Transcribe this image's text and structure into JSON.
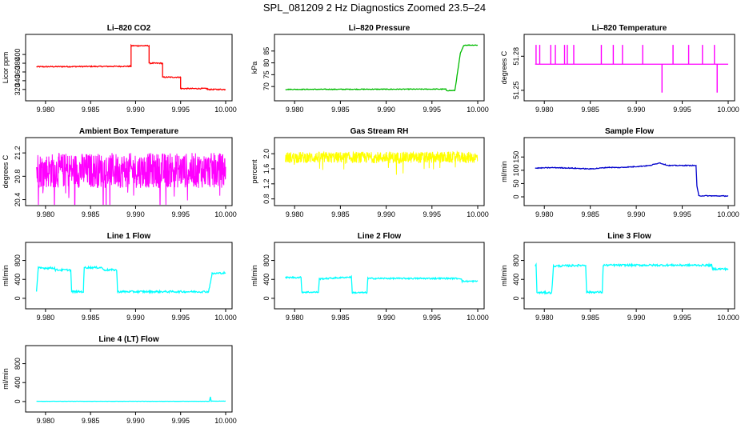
{
  "title": "SPL_081209  2 Hz Diagnostics Zoomed 23.5–24",
  "chart_data": [
    {
      "type": "line",
      "title": "Li–820 CO2",
      "ylabel": "Licor ppm",
      "color": "#ff0000",
      "xlim": [
        9.9785,
        10.0
      ],
      "ylim": [
        305,
        435
      ],
      "xticks": [
        9.98,
        9.985,
        9.99,
        9.995,
        10.0
      ],
      "xtick_labels": [
        "9.980",
        "9.985",
        "9.990",
        "9.995",
        "10.000"
      ],
      "yticks": [
        320,
        340,
        360,
        380,
        400
      ],
      "ytick_labels": [
        "320",
        "340",
        "360",
        "380",
        "400"
      ],
      "x": [
        9.979,
        9.9895,
        9.9895,
        9.9915,
        9.9915,
        9.993,
        9.993,
        9.995,
        9.995,
        9.998,
        9.998,
        10.0
      ],
      "y": [
        372,
        373,
        420,
        420,
        380,
        380,
        348,
        348,
        322,
        322,
        320,
        320
      ],
      "noise": 1.2
    },
    {
      "type": "line",
      "title": "Li–820 Pressure",
      "ylabel": "kPa",
      "color": "#00bb00",
      "xlim": [
        9.9785,
        10.0
      ],
      "ylim": [
        66,
        90
      ],
      "xticks": [
        9.98,
        9.985,
        9.99,
        9.995,
        10.0
      ],
      "xtick_labels": [
        "9.980",
        "9.985",
        "9.990",
        "9.995",
        "10.000"
      ],
      "yticks": [
        70,
        75,
        80,
        85
      ],
      "ytick_labels": [
        "70",
        "75",
        "80",
        "85"
      ],
      "x": [
        9.979,
        9.9965,
        9.9966,
        9.9975,
        9.9978,
        9.9981,
        9.9985,
        10.0
      ],
      "y": [
        68.8,
        68.9,
        68.3,
        68.3,
        76,
        84,
        87.5,
        87.5
      ],
      "noise": 0.15
    },
    {
      "type": "spikes",
      "title": "Li–820 Temperature",
      "ylabel": "degrees C",
      "color": "#ff00ff",
      "xlim": [
        9.9785,
        10.0
      ],
      "ylim": [
        51.245,
        51.295
      ],
      "xticks": [
        9.98,
        9.985,
        9.99,
        9.995,
        10.0
      ],
      "xtick_labels": [
        "9.980",
        "9.985",
        "9.990",
        "9.995",
        "10.000"
      ],
      "yticks": [
        51.25,
        51.28
      ],
      "ytick_labels": [
        "51.25",
        "51.28"
      ],
      "baseline": 51.273,
      "x": [
        9.9791,
        9.9795,
        9.9807,
        9.9812,
        9.9822,
        9.9825,
        9.9832,
        9.9862,
        9.9875,
        9.9885,
        9.9907,
        9.9928,
        9.994,
        9.9957,
        9.9972,
        9.9985,
        9.9988
      ],
      "y": [
        51.29,
        51.29,
        51.29,
        51.29,
        51.29,
        51.29,
        51.29,
        51.29,
        51.29,
        51.29,
        51.29,
        51.248,
        51.29,
        51.29,
        51.29,
        51.29,
        51.248
      ]
    },
    {
      "type": "noisy",
      "title": "Ambient Box Temperature",
      "ylabel": "degrees C",
      "color": "#ff00ff",
      "xlim": [
        9.9785,
        10.0
      ],
      "ylim": [
        20.38,
        21.38
      ],
      "xticks": [
        9.98,
        9.985,
        9.99,
        9.995,
        10.0
      ],
      "xtick_labels": [
        "9.980",
        "9.985",
        "9.990",
        "9.995",
        "10.000"
      ],
      "yticks": [
        20.4,
        20.8,
        21.2
      ],
      "ytick_labels": [
        "20.4",
        "20.8",
        "21.2"
      ],
      "x": [
        9.979,
        10.0
      ],
      "y": [
        20.9,
        20.9
      ],
      "amplitude": 0.3
    },
    {
      "type": "noisy",
      "title": "Gas Stream RH",
      "ylabel": "percent",
      "color": "#ffff00",
      "xlim": [
        9.9785,
        10.0
      ],
      "ylim": [
        0.75,
        2.3
      ],
      "xticks": [
        9.98,
        9.985,
        9.99,
        9.995,
        10.0
      ],
      "xtick_labels": [
        "9.980",
        "9.985",
        "9.990",
        "9.995",
        "10.000"
      ],
      "yticks": [
        0.8,
        1.2,
        1.6,
        2.0
      ],
      "ytick_labels": [
        "0.8",
        "1.2",
        "1.6",
        "2.0"
      ],
      "x": [
        9.979,
        10.0
      ],
      "y": [
        1.9,
        1.9
      ],
      "amplitude": 0.15
    },
    {
      "type": "line",
      "title": "Sample Flow",
      "ylabel": "ml/min",
      "color": "#0000cc",
      "xlim": [
        9.9785,
        10.0
      ],
      "ylim": [
        -15,
        205
      ],
      "xticks": [
        9.98,
        9.985,
        9.99,
        9.995,
        10.0
      ],
      "xtick_labels": [
        "9.980",
        "9.985",
        "9.990",
        "9.995",
        "10.000"
      ],
      "yticks": [
        0,
        50,
        100,
        150
      ],
      "ytick_labels": [
        "0",
        "50",
        "100",
        "150"
      ],
      "x": [
        9.979,
        9.981,
        9.983,
        9.985,
        9.987,
        9.988,
        9.99,
        9.9915,
        9.9925,
        9.9935,
        9.9948,
        9.9965,
        9.9966,
        9.9968,
        10.0
      ],
      "y": [
        108,
        110,
        108,
        105,
        111,
        110,
        114,
        118,
        128,
        118,
        118,
        118,
        40,
        4,
        3
      ],
      "noise": 1.5
    },
    {
      "type": "line",
      "title": "Line 1 Flow",
      "ylabel": "ml/min",
      "color": "#00ffff",
      "xlim": [
        9.9785,
        10.0
      ],
      "ylim": [
        -120,
        1080
      ],
      "xticks": [
        9.98,
        9.985,
        9.99,
        9.995,
        10.0
      ],
      "xtick_labels": [
        "9.980",
        "9.985",
        "9.990",
        "9.995",
        "10.000"
      ],
      "yticks": [
        0,
        400,
        800
      ],
      "ytick_labels": [
        "0",
        "400",
        "800"
      ],
      "x": [
        9.979,
        9.9792,
        9.981,
        9.9811,
        9.9828,
        9.9829,
        9.9842,
        9.9843,
        9.9863,
        9.9864,
        9.9879,
        9.988,
        9.9981,
        9.9985,
        10.0
      ],
      "y": [
        150,
        640,
        640,
        600,
        600,
        140,
        140,
        650,
        650,
        600,
        600,
        140,
        140,
        520,
        540
      ],
      "noise": 20
    },
    {
      "type": "line",
      "title": "Line 2 Flow",
      "ylabel": "ml/min",
      "color": "#00ffff",
      "xlim": [
        9.9785,
        10.0
      ],
      "ylim": [
        -120,
        1080
      ],
      "xticks": [
        9.98,
        9.985,
        9.99,
        9.995,
        10.0
      ],
      "xtick_labels": [
        "9.980",
        "9.985",
        "9.990",
        "9.995",
        "10.000"
      ],
      "yticks": [
        0,
        400,
        800
      ],
      "ytick_labels": [
        "0",
        "400",
        "800"
      ],
      "x": [
        9.979,
        9.9807,
        9.9808,
        9.9826,
        9.9827,
        9.9862,
        9.9863,
        9.9879,
        9.988,
        9.9982,
        9.9983,
        10.0
      ],
      "y": [
        440,
        440,
        130,
        130,
        410,
        450,
        120,
        120,
        420,
        420,
        360,
        360
      ],
      "noise": 15
    },
    {
      "type": "line",
      "title": "Line 3 Flow",
      "ylabel": "ml/min",
      "color": "#00ffff",
      "xlim": [
        9.9785,
        10.0
      ],
      "ylim": [
        -120,
        1080
      ],
      "xticks": [
        9.98,
        9.985,
        9.99,
        9.995,
        10.0
      ],
      "xtick_labels": [
        "9.980",
        "9.985",
        "9.990",
        "9.995",
        "10.000"
      ],
      "yticks": [
        0,
        400,
        800
      ],
      "ytick_labels": [
        "0",
        "400",
        "800"
      ],
      "x": [
        9.979,
        9.9791,
        9.9792,
        9.9808,
        9.981,
        9.9845,
        9.9846,
        9.9863,
        9.9864,
        9.9982,
        9.9983,
        10.0
      ],
      "y": [
        700,
        700,
        120,
        120,
        680,
        700,
        130,
        130,
        700,
        700,
        620,
        620
      ],
      "noise": 20
    },
    {
      "type": "line",
      "title": "Line 4 (LT) Flow",
      "ylabel": "ml/min",
      "color": "#00ffff",
      "xlim": [
        9.9785,
        10.0
      ],
      "ylim": [
        -120,
        1080
      ],
      "xticks": [
        9.98,
        9.985,
        9.99,
        9.995,
        10.0
      ],
      "xtick_labels": [
        "9.980",
        "9.985",
        "9.990",
        "9.995",
        "10.000"
      ],
      "yticks": [
        0,
        400,
        800
      ],
      "ytick_labels": [
        "0",
        "400",
        "800"
      ],
      "x": [
        9.979,
        9.9982,
        9.9983,
        9.9984,
        9.9985,
        10.0
      ],
      "y": [
        5,
        5,
        100,
        5,
        8,
        8
      ],
      "noise": 2
    }
  ]
}
